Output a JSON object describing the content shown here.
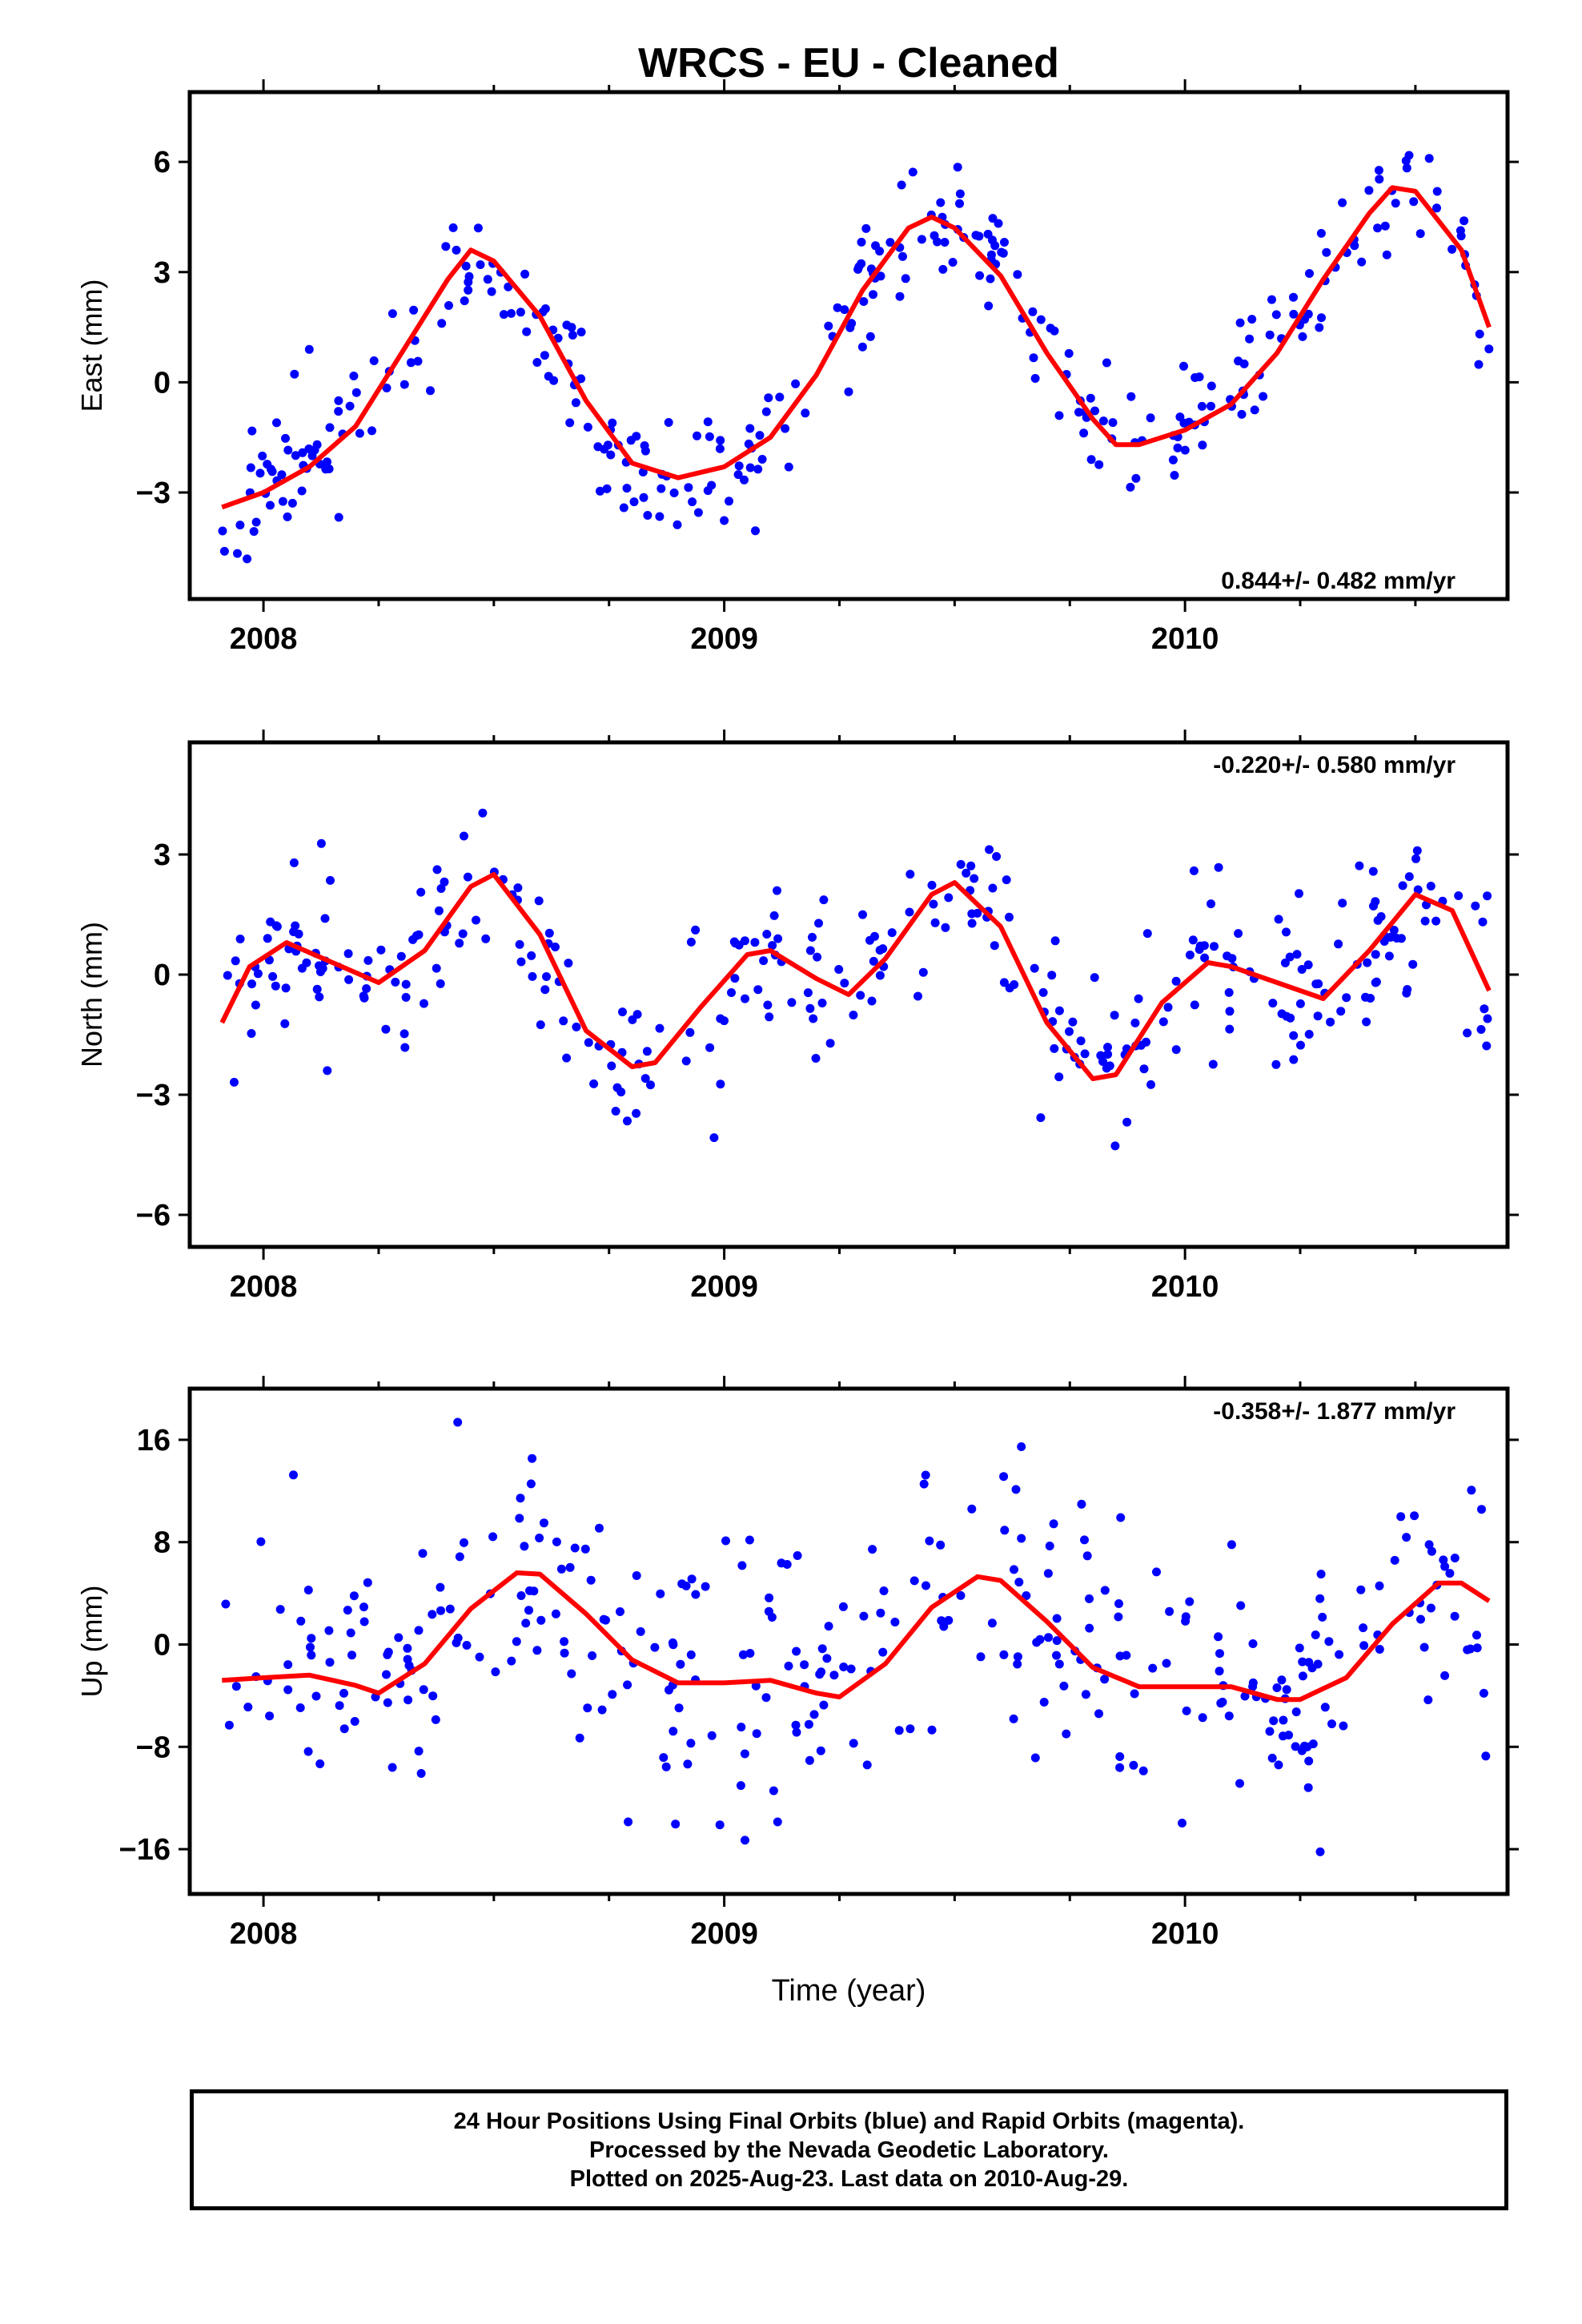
{
  "title": "WRCS  - EU - Cleaned",
  "xlabel": "Time (year)",
  "footer": {
    "line1": "24 Hour Positions Using Final Orbits (blue) and Rapid Orbits (magenta).",
    "line2": "Processed by the Nevada Geodetic Laboratory.",
    "line3": "Plotted on 2025-Aug-23. Last data on 2010-Aug-29."
  },
  "colors": {
    "points": "#0000ff",
    "fit": "#ff0000",
    "axes": "#000000"
  },
  "chart_data": [
    {
      "type": "scatter",
      "name": "east",
      "ylabel": "East (mm)",
      "rate": "0.844+/- 0.482 mm/yr",
      "xlim": [
        2007.84,
        2010.7
      ],
      "ylim": [
        -5.9,
        7.9
      ],
      "yticks": [
        -3,
        0,
        3,
        6
      ],
      "xticks": [
        2008,
        2009,
        2010
      ],
      "fit": {
        "x": [
          2007.91,
          2008.0,
          2008.1,
          2008.2,
          2008.3,
          2008.4,
          2008.45,
          2008.5,
          2008.6,
          2008.7,
          2008.8,
          2008.9,
          2009.0,
          2009.1,
          2009.2,
          2009.3,
          2009.4,
          2009.45,
          2009.5,
          2009.6,
          2009.7,
          2009.8,
          2009.85,
          2009.9,
          2010.0,
          2010.1,
          2010.2,
          2010.3,
          2010.4,
          2010.45,
          2010.5,
          2010.6,
          2010.66
        ],
        "y": [
          -3.4,
          -3.0,
          -2.3,
          -1.2,
          0.8,
          2.8,
          3.6,
          3.3,
          1.8,
          -0.5,
          -2.2,
          -2.6,
          -2.3,
          -1.5,
          0.2,
          2.5,
          4.2,
          4.5,
          4.2,
          2.9,
          0.8,
          -1.0,
          -1.7,
          -1.7,
          -1.3,
          -0.6,
          0.8,
          2.8,
          4.6,
          5.3,
          5.2,
          3.6,
          1.5
        ]
      },
      "points": {
        "seed": 11,
        "count": 330
      }
    },
    {
      "type": "scatter",
      "name": "north",
      "ylabel": "North (mm)",
      "rate": "-0.220+/- 0.580 mm/yr",
      "xlim": [
        2007.84,
        2010.7
      ],
      "ylim": [
        -6.8,
        5.8
      ],
      "yticks": [
        -6,
        -3,
        0,
        3
      ],
      "xticks": [
        2008,
        2009,
        2010
      ],
      "fit": {
        "x": [
          2007.91,
          2007.97,
          2008.05,
          2008.15,
          2008.25,
          2008.35,
          2008.45,
          2008.5,
          2008.6,
          2008.7,
          2008.8,
          2008.85,
          2008.95,
          2009.05,
          2009.1,
          2009.2,
          2009.27,
          2009.35,
          2009.45,
          2009.5,
          2009.6,
          2009.7,
          2009.8,
          2009.85,
          2009.95,
          2010.05,
          2010.1,
          2010.2,
          2010.3,
          2010.4,
          2010.5,
          2010.58,
          2010.66
        ],
        "y": [
          -1.2,
          0.2,
          0.8,
          0.3,
          -0.2,
          0.6,
          2.2,
          2.5,
          1.0,
          -1.4,
          -2.3,
          -2.2,
          -0.8,
          0.5,
          0.6,
          -0.1,
          -0.5,
          0.4,
          2.0,
          2.3,
          1.2,
          -1.2,
          -2.6,
          -2.5,
          -0.7,
          0.3,
          0.2,
          -0.2,
          -0.6,
          0.6,
          2.0,
          1.6,
          -0.4
        ]
      },
      "points": {
        "seed": 23,
        "count": 330
      }
    },
    {
      "type": "scatter",
      "name": "up",
      "ylabel": "Up (mm)",
      "rate": "-0.358+/- 1.877 mm/yr",
      "xlim": [
        2007.84,
        2010.7
      ],
      "ylim": [
        -19.5,
        20.0
      ],
      "yticks": [
        -16,
        -8,
        0,
        8,
        16
      ],
      "xticks": [
        2008,
        2009,
        2010
      ],
      "fit": {
        "x": [
          2007.91,
          2008.0,
          2008.1,
          2008.2,
          2008.25,
          2008.35,
          2008.45,
          2008.55,
          2008.6,
          2008.7,
          2008.8,
          2008.9,
          2009.0,
          2009.1,
          2009.2,
          2009.25,
          2009.35,
          2009.45,
          2009.55,
          2009.6,
          2009.7,
          2009.8,
          2009.9,
          2010.0,
          2010.1,
          2010.2,
          2010.25,
          2010.35,
          2010.45,
          2010.55,
          2010.6,
          2010.66
        ],
        "y": [
          -2.8,
          -2.6,
          -2.4,
          -3.2,
          -3.8,
          -1.5,
          2.8,
          5.6,
          5.5,
          2.4,
          -1.2,
          -3.0,
          -3.0,
          -2.8,
          -3.8,
          -4.1,
          -1.5,
          2.9,
          5.3,
          5.0,
          1.8,
          -1.8,
          -3.3,
          -3.3,
          -3.3,
          -4.3,
          -4.3,
          -2.6,
          1.6,
          4.8,
          4.8,
          3.4
        ]
      },
      "points": {
        "seed": 37,
        "count": 340
      }
    }
  ]
}
